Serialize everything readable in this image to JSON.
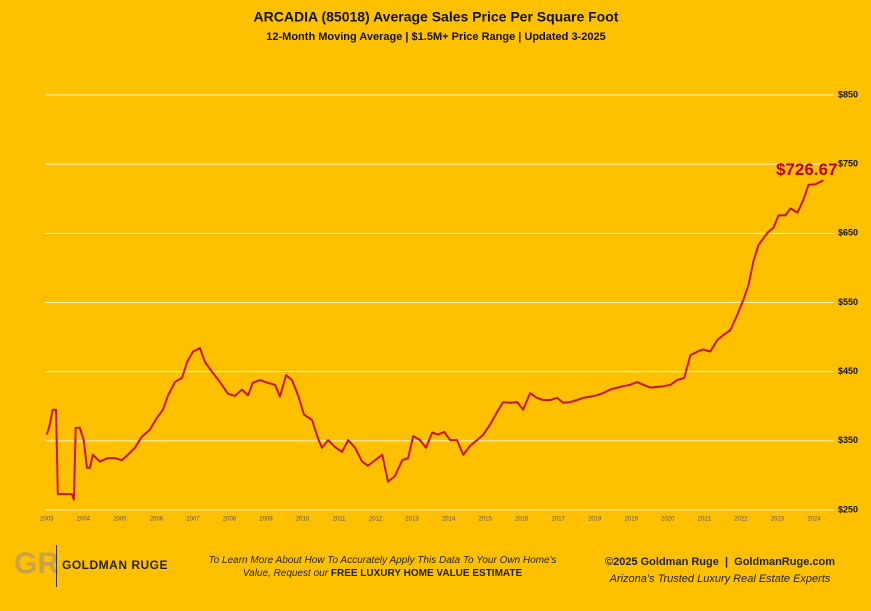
{
  "chart_data": {
    "type": "line",
    "title": "ARCADIA (85018) Average Sales Price Per Square Foot",
    "subtitle": "12-Month Moving Average | $1.5M+ Price Range | Updated 3-2025",
    "annotation": "$726.67",
    "color": "#cc1420",
    "grid": true,
    "x": [
      2003.0,
      2003.08,
      2003.16,
      2003.25,
      2003.3,
      2003.68,
      2003.74,
      2003.79,
      2003.9,
      2004.01,
      2004.1,
      2004.18,
      2004.26,
      2004.45,
      2004.67,
      2004.86,
      2005.05,
      2005.22,
      2005.41,
      2005.6,
      2005.82,
      2006.01,
      2006.18,
      2006.32,
      2006.51,
      2006.7,
      2006.84,
      2007.0,
      2007.19,
      2007.33,
      2007.52,
      2007.74,
      2007.96,
      2008.15,
      2008.34,
      2008.51,
      2008.64,
      2008.84,
      2009.03,
      2009.25,
      2009.38,
      2009.55,
      2009.71,
      2009.88,
      2010.04,
      2010.26,
      2010.42,
      2010.53,
      2010.7,
      2010.89,
      2011.08,
      2011.25,
      2011.44,
      2011.63,
      2011.79,
      2011.99,
      2012.18,
      2012.34,
      2012.53,
      2012.73,
      2012.89,
      2013.03,
      2013.22,
      2013.38,
      2013.55,
      2013.71,
      2013.88,
      2014.04,
      2014.23,
      2014.4,
      2014.59,
      2014.78,
      2014.95,
      2015.14,
      2015.33,
      2015.49,
      2015.68,
      2015.88,
      2016.04,
      2016.23,
      2016.42,
      2016.59,
      2016.78,
      2016.97,
      2017.14,
      2017.33,
      2017.52,
      2017.68,
      2017.88,
      2018.07,
      2018.23,
      2018.42,
      2018.62,
      2018.78,
      2018.97,
      2019.16,
      2019.33,
      2019.52,
      2019.71,
      2019.88,
      2020.07,
      2020.26,
      2020.45,
      2020.62,
      2020.81,
      2020.97,
      2021.16,
      2021.36,
      2021.52,
      2021.71,
      2021.9,
      2022.07,
      2022.21,
      2022.34,
      2022.48,
      2022.62,
      2022.75,
      2022.89,
      2023.03,
      2023.22,
      2023.36,
      2023.55,
      2023.71,
      2023.85,
      2024.04,
      2024.26
    ],
    "values": [
      359,
      373,
      395,
      395,
      273,
      273,
      265,
      369,
      369,
      351,
      311,
      311,
      330,
      320,
      325,
      325,
      322,
      330,
      340,
      356,
      366,
      383,
      395,
      416,
      435,
      441,
      464,
      479,
      484,
      464,
      450,
      435,
      418,
      415,
      424,
      416,
      434,
      438,
      434,
      431,
      414,
      445,
      438,
      416,
      388,
      380,
      354,
      340,
      351,
      341,
      334,
      351,
      340,
      320,
      314,
      322,
      330,
      291,
      299,
      322,
      325,
      357,
      351,
      340,
      362,
      359,
      363,
      351,
      351,
      330,
      343,
      351,
      359,
      374,
      392,
      406,
      405,
      406,
      395,
      419,
      412,
      409,
      409,
      412,
      405,
      406,
      409,
      412,
      414,
      416,
      419,
      424,
      427,
      429,
      431,
      435,
      431,
      427,
      428,
      429,
      431,
      438,
      441,
      474,
      479,
      482,
      479,
      496,
      503,
      510,
      532,
      554,
      575,
      609,
      633,
      643,
      652,
      658,
      676,
      676,
      686,
      680,
      698,
      720,
      721,
      726.67
    ],
    "xlim": [
      2002.95,
      2024.55
    ],
    "xticks": [
      2003,
      2004,
      2005,
      2006,
      2007,
      2008,
      2009,
      2010,
      2011,
      2012,
      2013,
      2014,
      2015,
      2016,
      2017,
      2018,
      2019,
      2020,
      2021,
      2022,
      2023,
      2024
    ],
    "ylim": [
      250,
      850
    ],
    "yticks": [
      {
        "value": 250,
        "label": "$250"
      },
      {
        "value": 350,
        "label": "$350"
      },
      {
        "value": 450,
        "label": "$450"
      },
      {
        "value": 550,
        "label": "$550"
      },
      {
        "value": 650,
        "label": "$650"
      },
      {
        "value": 750,
        "label": "$750"
      },
      {
        "value": 850,
        "label": "$850"
      }
    ]
  },
  "footer": {
    "logo_mark": "GR",
    "logo_name": "GOLDMAN RUGE",
    "cta_line1": "To Learn More About How To Accurately Apply This Data To Your Own Home's",
    "cta_line2": "Value, Request our ",
    "cta_bold": "FREE LUXURY HOME VALUE ESTIMATE",
    "copyright": "©2025 Goldman Ruge  |  GoldmanRuge.com",
    "tagline": "Arizona's Trusted Luxury Real Estate Experts"
  }
}
